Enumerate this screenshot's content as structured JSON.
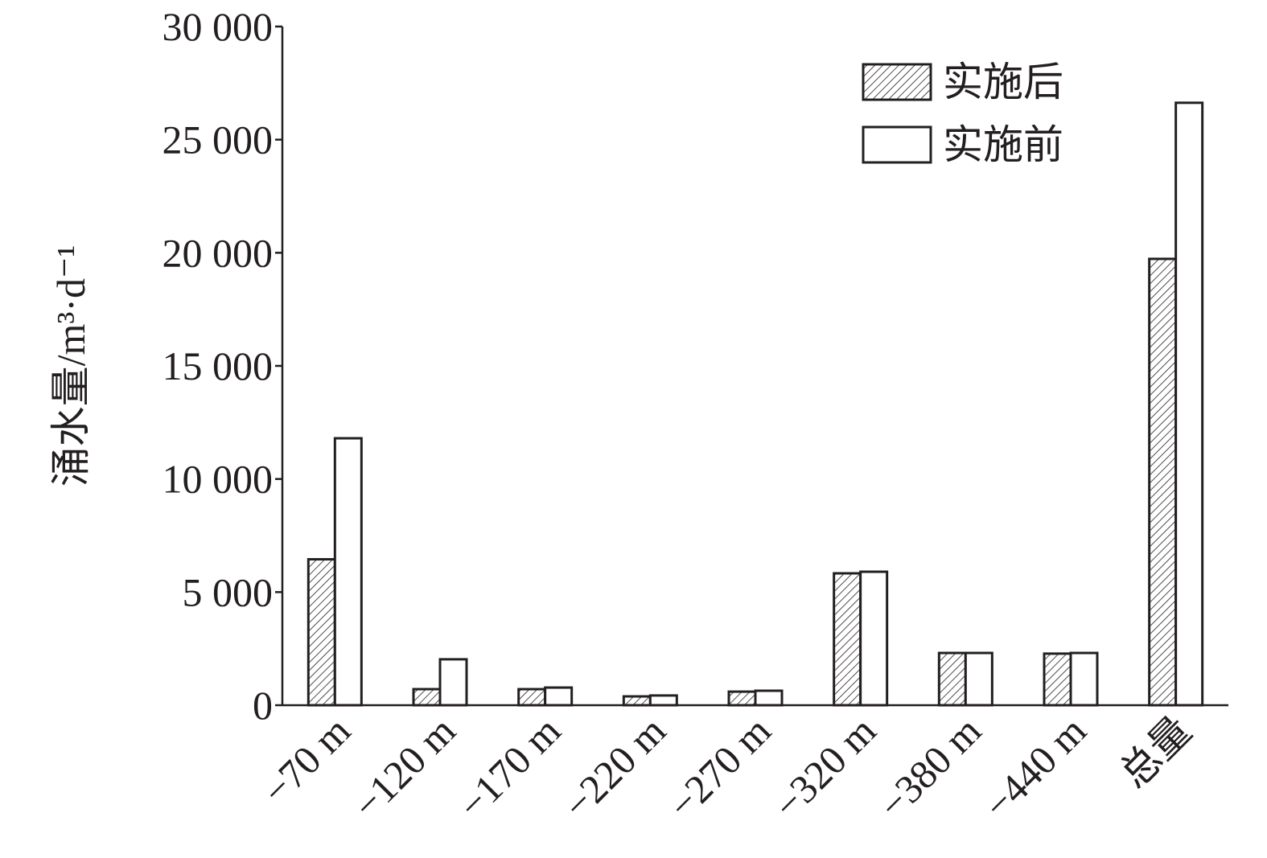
{
  "chart_data": {
    "type": "bar",
    "ylabel": "涌水量/m³·d⁻¹",
    "categories": [
      "−70 m",
      "−120 m",
      "−170 m",
      "−220 m",
      "−270 m",
      "−320 m",
      "−380 m",
      "−440 m",
      "总量"
    ],
    "series": [
      {
        "name": "实施后",
        "color": "#231f20",
        "hatch": true,
        "values": [
          6450,
          710,
          710,
          390,
          600,
          5830,
          2310,
          2280,
          19730
        ]
      },
      {
        "name": "实施前",
        "color": "#ffffff",
        "hatch": false,
        "values": [
          11800,
          2030,
          780,
          430,
          640,
          5900,
          2310,
          2310,
          26630
        ]
      }
    ],
    "ylim": [
      0,
      30000
    ],
    "yticks": [
      0,
      {
        "value": 5000,
        "label": "5 000"
      },
      {
        "value": 10000,
        "label": "10 000"
      },
      {
        "value": 15000,
        "label": "15 000"
      },
      {
        "value": 20000,
        "label": "20 000"
      },
      {
        "value": 25000,
        "label": "25 000"
      },
      {
        "value": 30000,
        "label": "30 000"
      }
    ],
    "legend": "upper right"
  }
}
